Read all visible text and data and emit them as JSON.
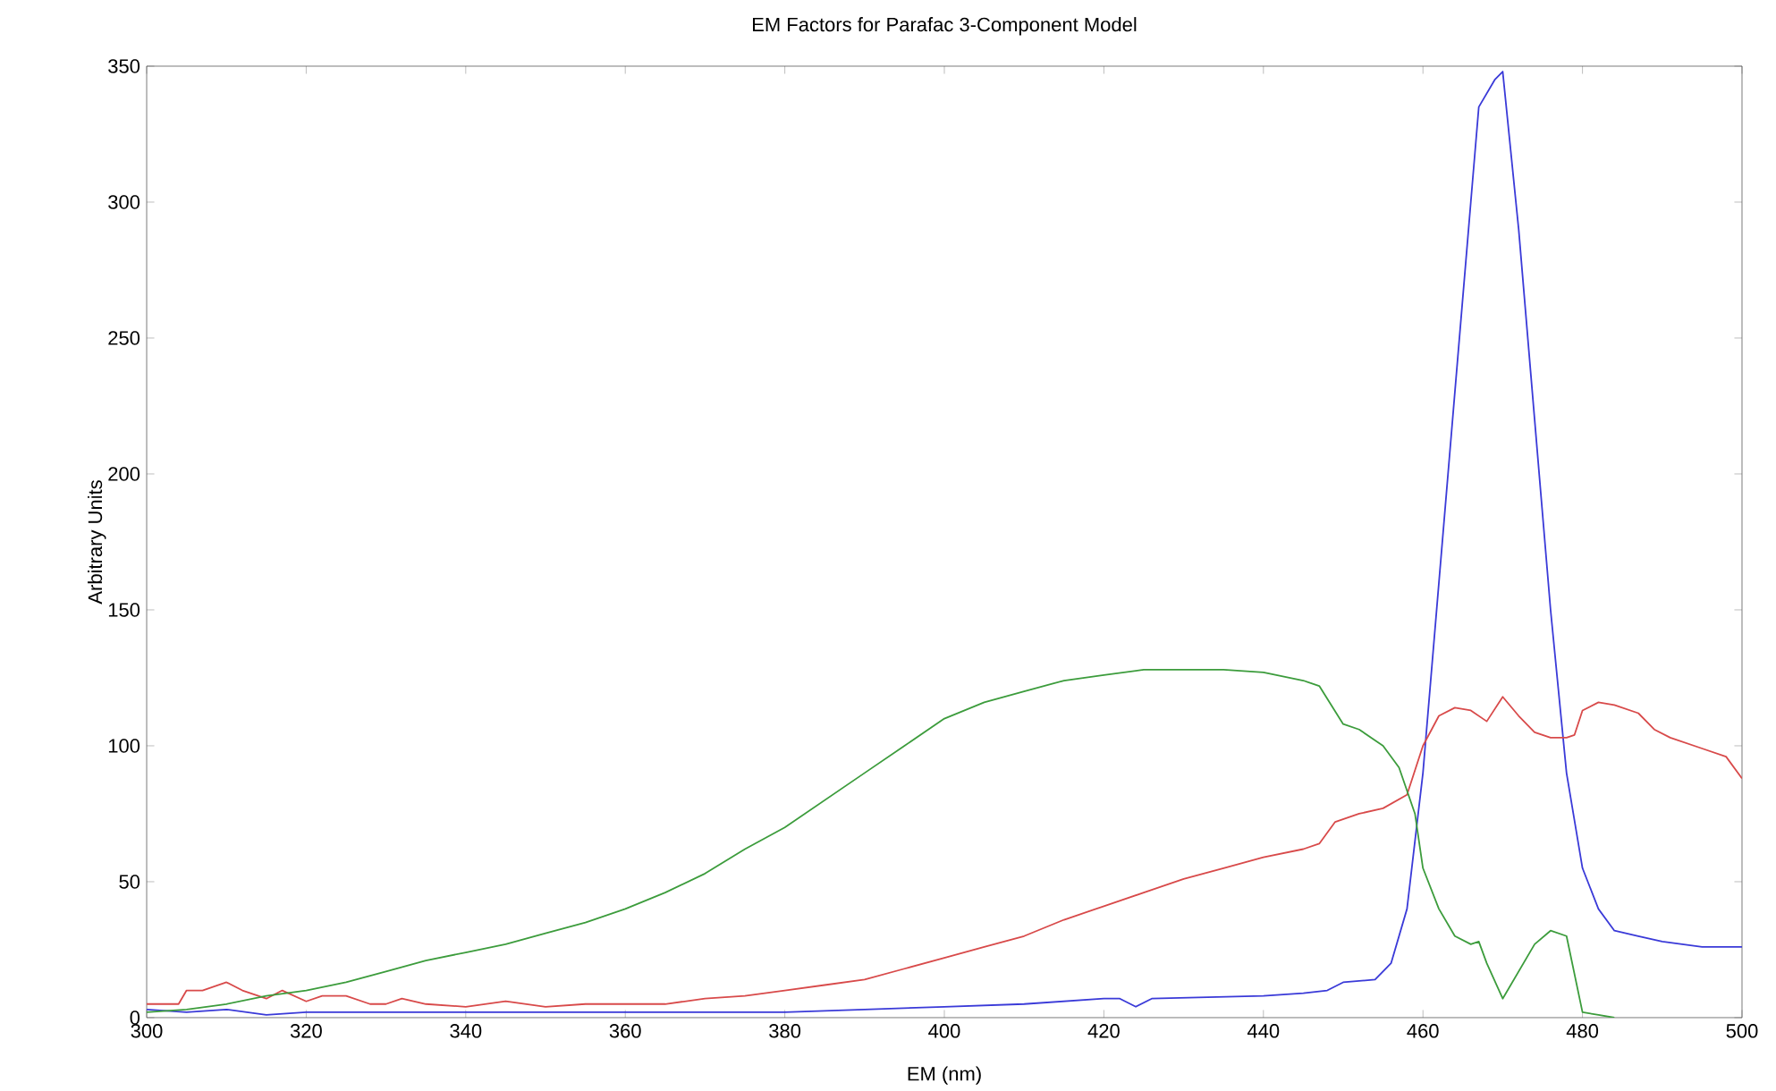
{
  "chart_data": {
    "type": "line",
    "title": "EM Factors for Parafac 3-Component Model",
    "xlabel": "EM (nm)",
    "ylabel": "Arbitrary Units",
    "xlim": [
      300,
      500
    ],
    "ylim": [
      0,
      350
    ],
    "xticks": [
      300,
      320,
      340,
      360,
      380,
      400,
      420,
      440,
      460,
      480,
      500
    ],
    "yticks": [
      0,
      50,
      100,
      150,
      200,
      250,
      300,
      350
    ],
    "grid": false,
    "marker": "none",
    "line_style": "solid",
    "series": [
      {
        "color": "#3a3ad8",
        "x": [
          300,
          305,
          310,
          315,
          320,
          330,
          340,
          350,
          360,
          370,
          380,
          390,
          400,
          410,
          420,
          422,
          424,
          426,
          440,
          445,
          448,
          450,
          454,
          456,
          458,
          460,
          462,
          464,
          466,
          467,
          469,
          470,
          472,
          474,
          476,
          478,
          480,
          482,
          484,
          487,
          490,
          495,
          500
        ],
        "values": [
          3,
          2,
          3,
          1,
          2,
          2,
          2,
          2,
          2,
          2,
          2,
          3,
          4,
          5,
          7,
          7,
          4,
          7,
          8,
          9,
          10,
          13,
          14,
          20,
          40,
          90,
          160,
          230,
          300,
          335,
          345,
          348,
          290,
          220,
          150,
          90,
          55,
          40,
          32,
          30,
          28,
          26,
          26
        ]
      },
      {
        "color": "#d84a4a",
        "x": [
          300,
          304,
          305,
          307,
          310,
          312,
          315,
          317,
          320,
          322,
          325,
          328,
          330,
          332,
          335,
          340,
          345,
          350,
          355,
          360,
          365,
          370,
          375,
          380,
          385,
          390,
          395,
          400,
          405,
          410,
          415,
          420,
          425,
          430,
          435,
          440,
          445,
          447,
          449,
          452,
          455,
          458,
          460,
          462,
          464,
          466,
          468,
          470,
          472,
          474,
          476,
          478,
          479,
          480,
          482,
          484,
          487,
          489,
          491,
          495,
          498,
          500
        ],
        "values": [
          5,
          5,
          10,
          10,
          13,
          10,
          7,
          10,
          6,
          8,
          8,
          5,
          5,
          7,
          5,
          4,
          6,
          4,
          5,
          5,
          5,
          7,
          8,
          10,
          12,
          14,
          18,
          22,
          26,
          30,
          36,
          41,
          46,
          51,
          55,
          59,
          62,
          64,
          72,
          75,
          77,
          82,
          100,
          111,
          114,
          113,
          109,
          118,
          111,
          105,
          103,
          103,
          104,
          113,
          116,
          115,
          112,
          106,
          103,
          99,
          96,
          88
        ]
      },
      {
        "color": "#3c9c3c",
        "x": [
          300,
          305,
          310,
          315,
          320,
          325,
          330,
          335,
          340,
          345,
          350,
          355,
          360,
          365,
          370,
          375,
          380,
          385,
          390,
          395,
          400,
          405,
          410,
          415,
          420,
          425,
          430,
          435,
          440,
          445,
          447,
          450,
          452,
          455,
          457,
          459,
          460,
          462,
          464,
          466,
          467,
          468,
          470,
          472,
          474,
          476,
          478,
          480,
          482,
          484
        ],
        "values": [
          2,
          3,
          5,
          8,
          10,
          13,
          17,
          21,
          24,
          27,
          31,
          35,
          40,
          46,
          53,
          62,
          70,
          80,
          90,
          100,
          110,
          116,
          120,
          124,
          126,
          128,
          128,
          128,
          127,
          124,
          122,
          108,
          106,
          100,
          92,
          75,
          55,
          40,
          30,
          27,
          28,
          20,
          7,
          17,
          27,
          32,
          30,
          2,
          1,
          0
        ]
      }
    ]
  }
}
